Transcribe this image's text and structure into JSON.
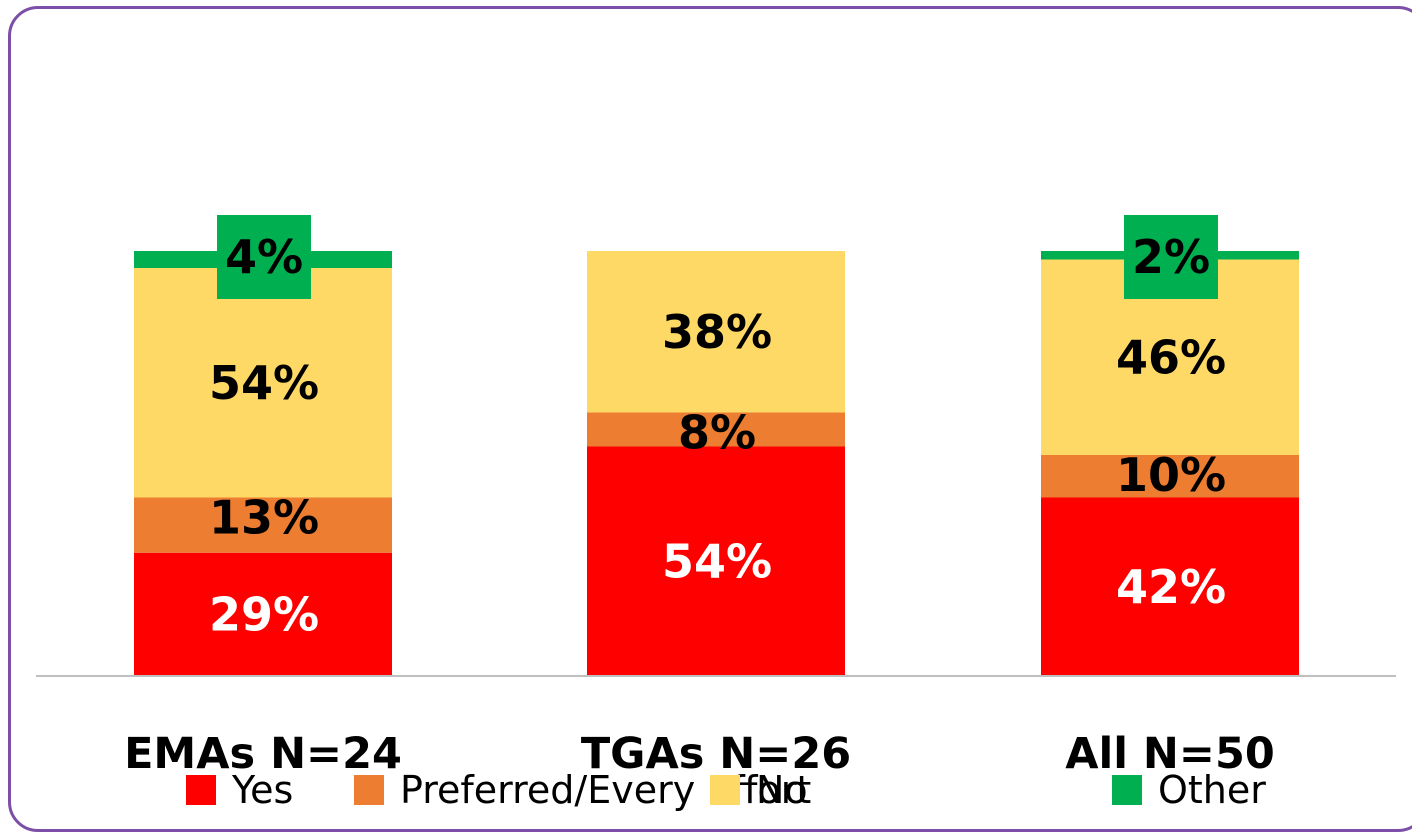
{
  "chart_data": {
    "type": "bar",
    "stacked": true,
    "categories": [
      "EMAs N=24",
      "TGAs N=26",
      "All N=50"
    ],
    "series": [
      {
        "name": "Yes",
        "values": [
          29,
          54,
          42
        ],
        "labels": [
          "29%",
          "54%",
          "42%"
        ]
      },
      {
        "name": "Preferred/Every Effort",
        "values": [
          13,
          8,
          10
        ],
        "labels": [
          "13%",
          "8%",
          "10%"
        ]
      },
      {
        "name": "No",
        "values": [
          54,
          38,
          46
        ],
        "labels": [
          "54%",
          "38%",
          "46%"
        ]
      },
      {
        "name": "Other",
        "values": [
          4,
          0,
          2
        ],
        "labels": [
          "4%",
          "",
          "2%"
        ]
      }
    ],
    "colors": {
      "Yes": "#ff0000",
      "Preferred/Every Effort": "#ed7d31",
      "No": "#ffd966",
      "Other": "#00b050",
      "frame": "#7d4fa8",
      "axis": "#bfbfbf"
    },
    "ylim": [
      0,
      100
    ],
    "legend": "bottom",
    "grid": false
  }
}
